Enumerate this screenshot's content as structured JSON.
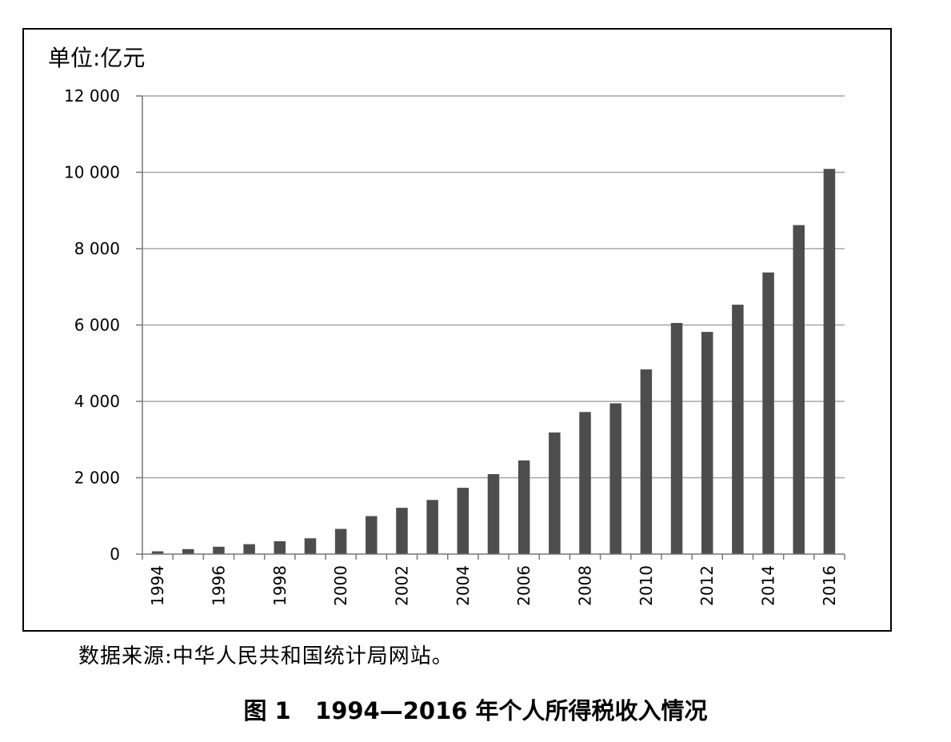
{
  "chart_data": {
    "type": "bar",
    "unit_label": "单位:亿元",
    "categories": [
      "1994",
      "1995",
      "1996",
      "1997",
      "1998",
      "1999",
      "2000",
      "2001",
      "2002",
      "2003",
      "2004",
      "2005",
      "2006",
      "2007",
      "2008",
      "2009",
      "2010",
      "2011",
      "2012",
      "2013",
      "2014",
      "2015",
      "2016"
    ],
    "values": [
      73,
      131,
      193,
      260,
      338,
      414,
      660,
      995,
      1212,
      1418,
      1737,
      2095,
      2454,
      3186,
      3722,
      3949,
      4837,
      6054,
      5820,
      6532,
      7377,
      8617,
      10089
    ],
    "x_tick_labels": [
      "1994",
      "1996",
      "1998",
      "2000",
      "2002",
      "2004",
      "2006",
      "2008",
      "2010",
      "2012",
      "2014",
      "2016"
    ],
    "y_tick_labels": [
      "0",
      "2 000",
      "4 000",
      "6 000",
      "8 000",
      "10 000",
      "12 000"
    ],
    "y_ticks": [
      0,
      2000,
      4000,
      6000,
      8000,
      10000,
      12000
    ],
    "ylim": [
      0,
      12000
    ],
    "grid": true,
    "bar_color": "#4d4d4d",
    "grid_color": "#a6a6a6"
  },
  "source_note": "数据来源:中华人民共和国统计局网站。",
  "caption": {
    "number": "图 1",
    "title": "1994—2016 年个人所得税收入情况"
  }
}
